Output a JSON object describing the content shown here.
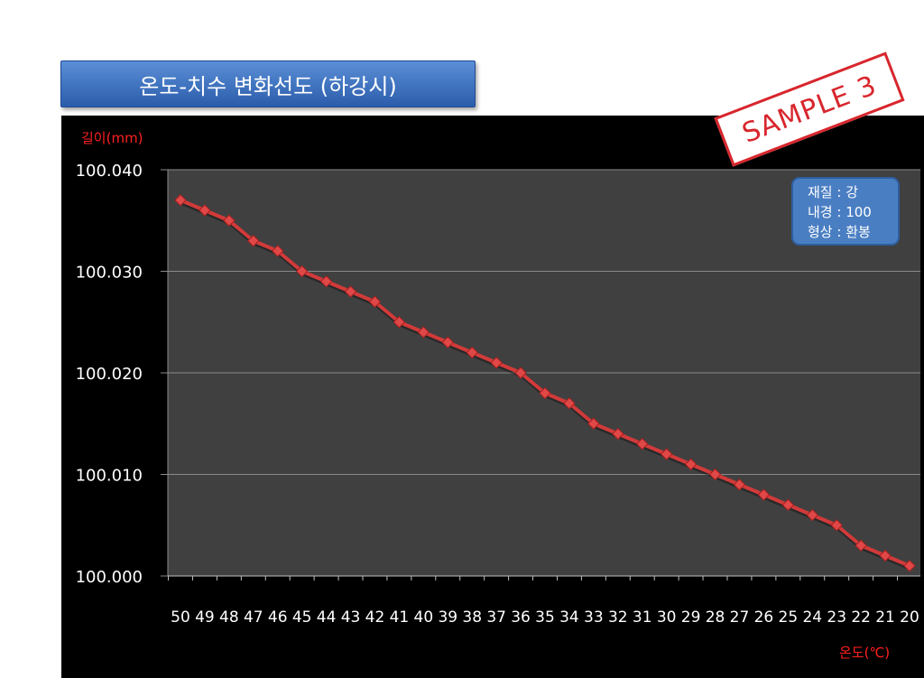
{
  "title": "온도-치수 변화선도 (하강시)",
  "stamp_text": "SAMPLE 3",
  "info_box": {
    "lines": [
      "재질 : 강",
      "내경 : 100",
      "형상 : 환봉"
    ]
  },
  "colors": {
    "title_bg": "#3b6fc2",
    "panel_bg": "#000000",
    "plot_bg": "#404040",
    "series": "#d23a3a",
    "axis_label": "#ff2020",
    "stamp": "#d8262d"
  },
  "chart_data": {
    "type": "line",
    "title": "",
    "ylabel": "길이(mm)",
    "xlabel": "온도(℃)",
    "ylim": [
      100.0,
      100.04
    ],
    "yticks": [
      "100.000",
      "100.010",
      "100.020",
      "100.030",
      "100.040"
    ],
    "grid": true,
    "categories": [
      "50",
      "49",
      "48",
      "47",
      "46",
      "45",
      "44",
      "43",
      "42",
      "41",
      "40",
      "39",
      "38",
      "37",
      "36",
      "35",
      "34",
      "33",
      "32",
      "31",
      "30",
      "29",
      "28",
      "27",
      "26",
      "25",
      "24",
      "23",
      "22",
      "21",
      "20"
    ],
    "series": [
      {
        "values": [
          100.037,
          100.036,
          100.035,
          100.033,
          100.032,
          100.03,
          100.029,
          100.028,
          100.027,
          100.025,
          100.024,
          100.023,
          100.022,
          100.021,
          100.02,
          100.018,
          100.017,
          100.015,
          100.014,
          100.013,
          100.012,
          100.011,
          100.01,
          100.009,
          100.008,
          100.007,
          100.006,
          100.005,
          100.003,
          100.002,
          100.001
        ]
      }
    ]
  }
}
